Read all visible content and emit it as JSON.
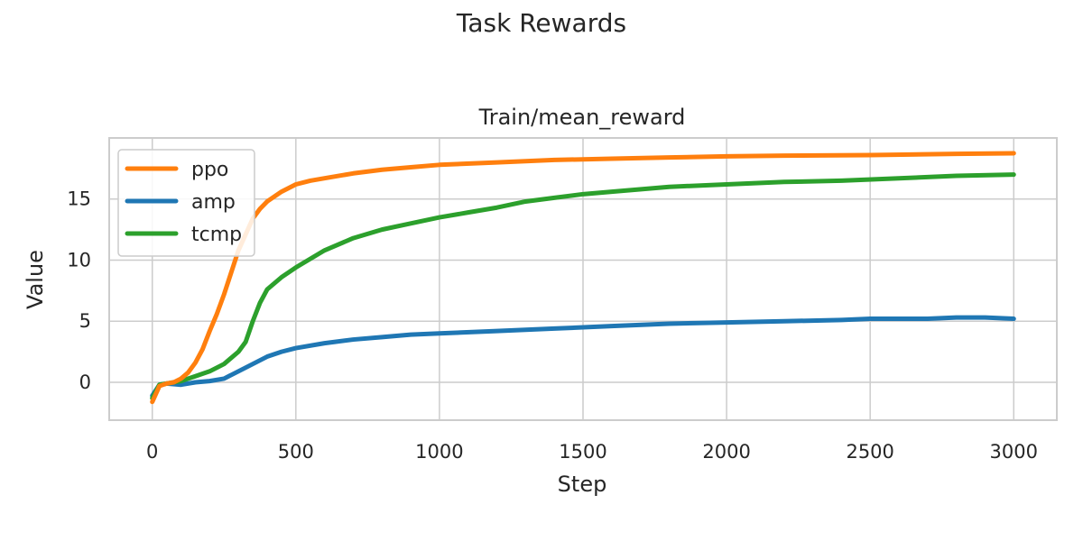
{
  "figure": {
    "suptitle": "Task Rewards"
  },
  "chart_data": {
    "type": "line",
    "title": "Train/mean_reward",
    "xlabel": "Step",
    "ylabel": "Value",
    "xlim": [
      -150,
      3150
    ],
    "ylim": [
      -3.1,
      20.0
    ],
    "xticks": [
      0,
      500,
      1000,
      1500,
      2000,
      2500,
      3000
    ],
    "yticks": [
      0,
      5,
      10,
      15
    ],
    "grid": true,
    "legend_position": "top-left",
    "series": [
      {
        "name": "ppo",
        "color": "#ff7f0e",
        "x": [
          0,
          25,
          50,
          75,
          100,
          125,
          150,
          175,
          200,
          225,
          250,
          275,
          300,
          325,
          350,
          375,
          400,
          450,
          500,
          550,
          600,
          700,
          800,
          900,
          1000,
          1200,
          1400,
          1600,
          1800,
          2000,
          2200,
          2500,
          2800,
          3000
        ],
        "y": [
          -1.6,
          -0.3,
          -0.1,
          0.0,
          0.3,
          0.8,
          1.6,
          2.7,
          4.2,
          5.6,
          7.2,
          9.0,
          10.8,
          12.1,
          13.4,
          14.2,
          14.8,
          15.6,
          16.2,
          16.5,
          16.7,
          17.1,
          17.4,
          17.6,
          17.8,
          18.0,
          18.2,
          18.3,
          18.4,
          18.5,
          18.55,
          18.6,
          18.7,
          18.75
        ]
      },
      {
        "name": "amp",
        "color": "#1f77b4",
        "x": [
          0,
          25,
          50,
          100,
          150,
          200,
          250,
          300,
          350,
          400,
          450,
          500,
          600,
          700,
          800,
          900,
          1000,
          1200,
          1400,
          1600,
          1800,
          2000,
          2200,
          2400,
          2500,
          2700,
          2800,
          2900,
          3000
        ],
        "y": [
          -1.1,
          -0.2,
          -0.1,
          -0.2,
          0.0,
          0.1,
          0.3,
          0.9,
          1.5,
          2.1,
          2.5,
          2.8,
          3.2,
          3.5,
          3.7,
          3.9,
          4.0,
          4.2,
          4.4,
          4.6,
          4.8,
          4.9,
          5.0,
          5.1,
          5.2,
          5.2,
          5.3,
          5.3,
          5.2
        ]
      },
      {
        "name": "tcmp",
        "color": "#2ca02c",
        "x": [
          0,
          25,
          50,
          100,
          150,
          200,
          250,
          300,
          325,
          350,
          375,
          400,
          450,
          500,
          550,
          600,
          700,
          800,
          900,
          1000,
          1100,
          1200,
          1300,
          1400,
          1500,
          1600,
          1800,
          2000,
          2200,
          2400,
          2600,
          2800,
          3000
        ],
        "y": [
          -1.3,
          -0.2,
          -0.1,
          0.1,
          0.5,
          0.9,
          1.5,
          2.5,
          3.3,
          5.0,
          6.5,
          7.6,
          8.6,
          9.4,
          10.1,
          10.8,
          11.8,
          12.5,
          13.0,
          13.5,
          13.9,
          14.3,
          14.8,
          15.1,
          15.4,
          15.6,
          16.0,
          16.2,
          16.4,
          16.5,
          16.7,
          16.9,
          17.0
        ]
      }
    ]
  }
}
